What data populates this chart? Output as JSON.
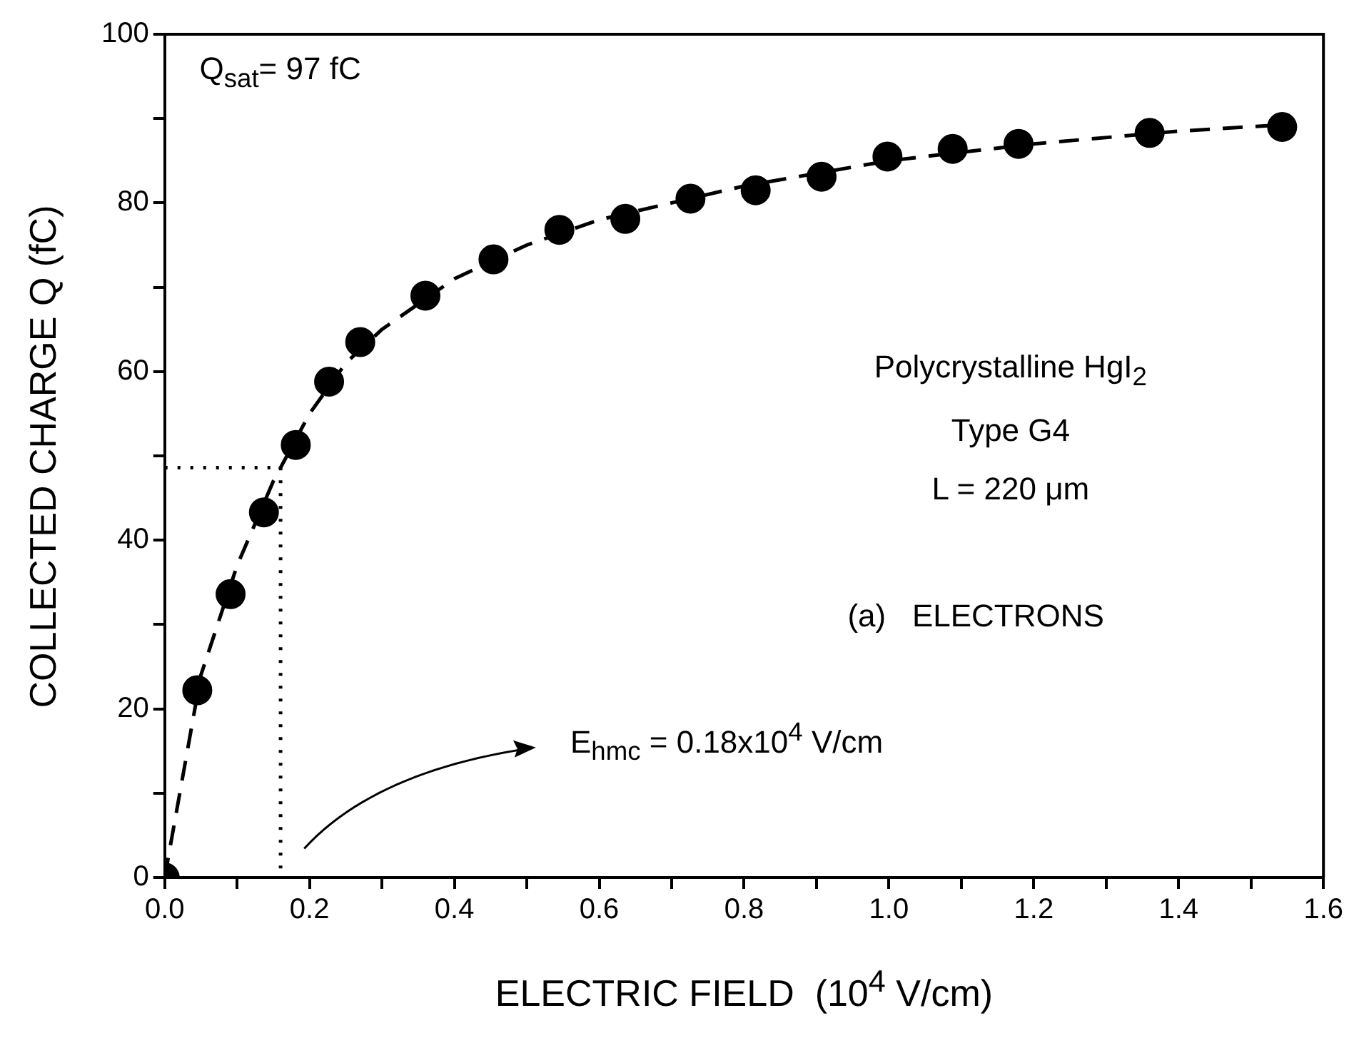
{
  "chart_data": {
    "type": "scatter",
    "xlabel": "ELECTRIC FIELD  (10$^{4}$ V/cm)",
    "ylabel": "COLLECTED CHARGE Q (fC)",
    "xlim": [
      0,
      1.6
    ],
    "xticks": [
      {
        "value": 0,
        "label": "0.0"
      },
      {
        "value": 0.1,
        "label": null
      },
      0.2,
      {
        "value": 0.3,
        "label": null
      },
      0.4,
      {
        "value": 0.5,
        "label": null
      },
      0.6,
      {
        "value": 0.7,
        "label": null
      },
      0.8,
      {
        "value": 0.9,
        "label": null
      },
      {
        "value": 1,
        "label": "1.0"
      },
      {
        "value": 1.1,
        "label": null
      },
      1.2,
      {
        "value": 1.3,
        "label": null
      },
      1.4,
      {
        "value": 1.5,
        "label": null
      },
      1.6
    ],
    "ylim": [
      0,
      100
    ],
    "yticks": [
      0,
      {
        "value": 10,
        "label": null
      },
      20,
      {
        "value": 30,
        "label": null
      },
      40,
      {
        "value": 50,
        "label": null
      },
      60,
      {
        "value": 70,
        "label": null
      },
      80,
      {
        "value": 90,
        "label": null
      },
      100
    ],
    "grid": false,
    "legend": false,
    "series": [
      {
        "type": "line",
        "color": "#000000",
        "line_style": "dashed",
        "marker": "none",
        "x": [
          0,
          0.05,
          0.1,
          0.15,
          0.2,
          0.25,
          0.3,
          0.4,
          0.5,
          0.6,
          0.7,
          0.8,
          0.9,
          1.0,
          1.2,
          1.4,
          1.55
        ],
        "values": [
          0,
          24,
          37,
          47,
          55,
          61,
          65,
          71,
          75,
          78,
          80,
          82,
          83.5,
          85,
          87,
          88.5,
          89.3
        ]
      },
      {
        "type": "line",
        "color": "#000000",
        "line_style": "dotted",
        "marker": "none",
        "x": [
          0,
          0.16,
          0.16
        ],
        "values": [
          48.6,
          48.6,
          0
        ]
      },
      {
        "type": "scatter",
        "color": "#000000",
        "marker": "circle",
        "x": [
          0,
          0.045,
          0.091,
          0.137,
          0.181,
          0.227,
          0.27,
          0.36,
          0.454,
          0.545,
          0.636,
          0.726,
          0.816,
          0.907,
          0.998,
          1.088,
          1.179,
          1.36,
          1.543
        ],
        "values": [
          0,
          22.2,
          33.6,
          43.3,
          51.3,
          58.8,
          63.5,
          69,
          73.3,
          76.8,
          78.1,
          80.5,
          81.5,
          83.1,
          85.5,
          86.4,
          87,
          88.3,
          89
        ]
      }
    ],
    "annotations": [
      "Q$_{sat}$= 97 fC",
      "Polycrystalline HgI$_{2}$",
      "Type G4",
      "L = 220 μm",
      "(a)   ELECTRONS",
      "E$_{hmc}$ = 0.18x10$^{4}$ V/cm"
    ]
  }
}
